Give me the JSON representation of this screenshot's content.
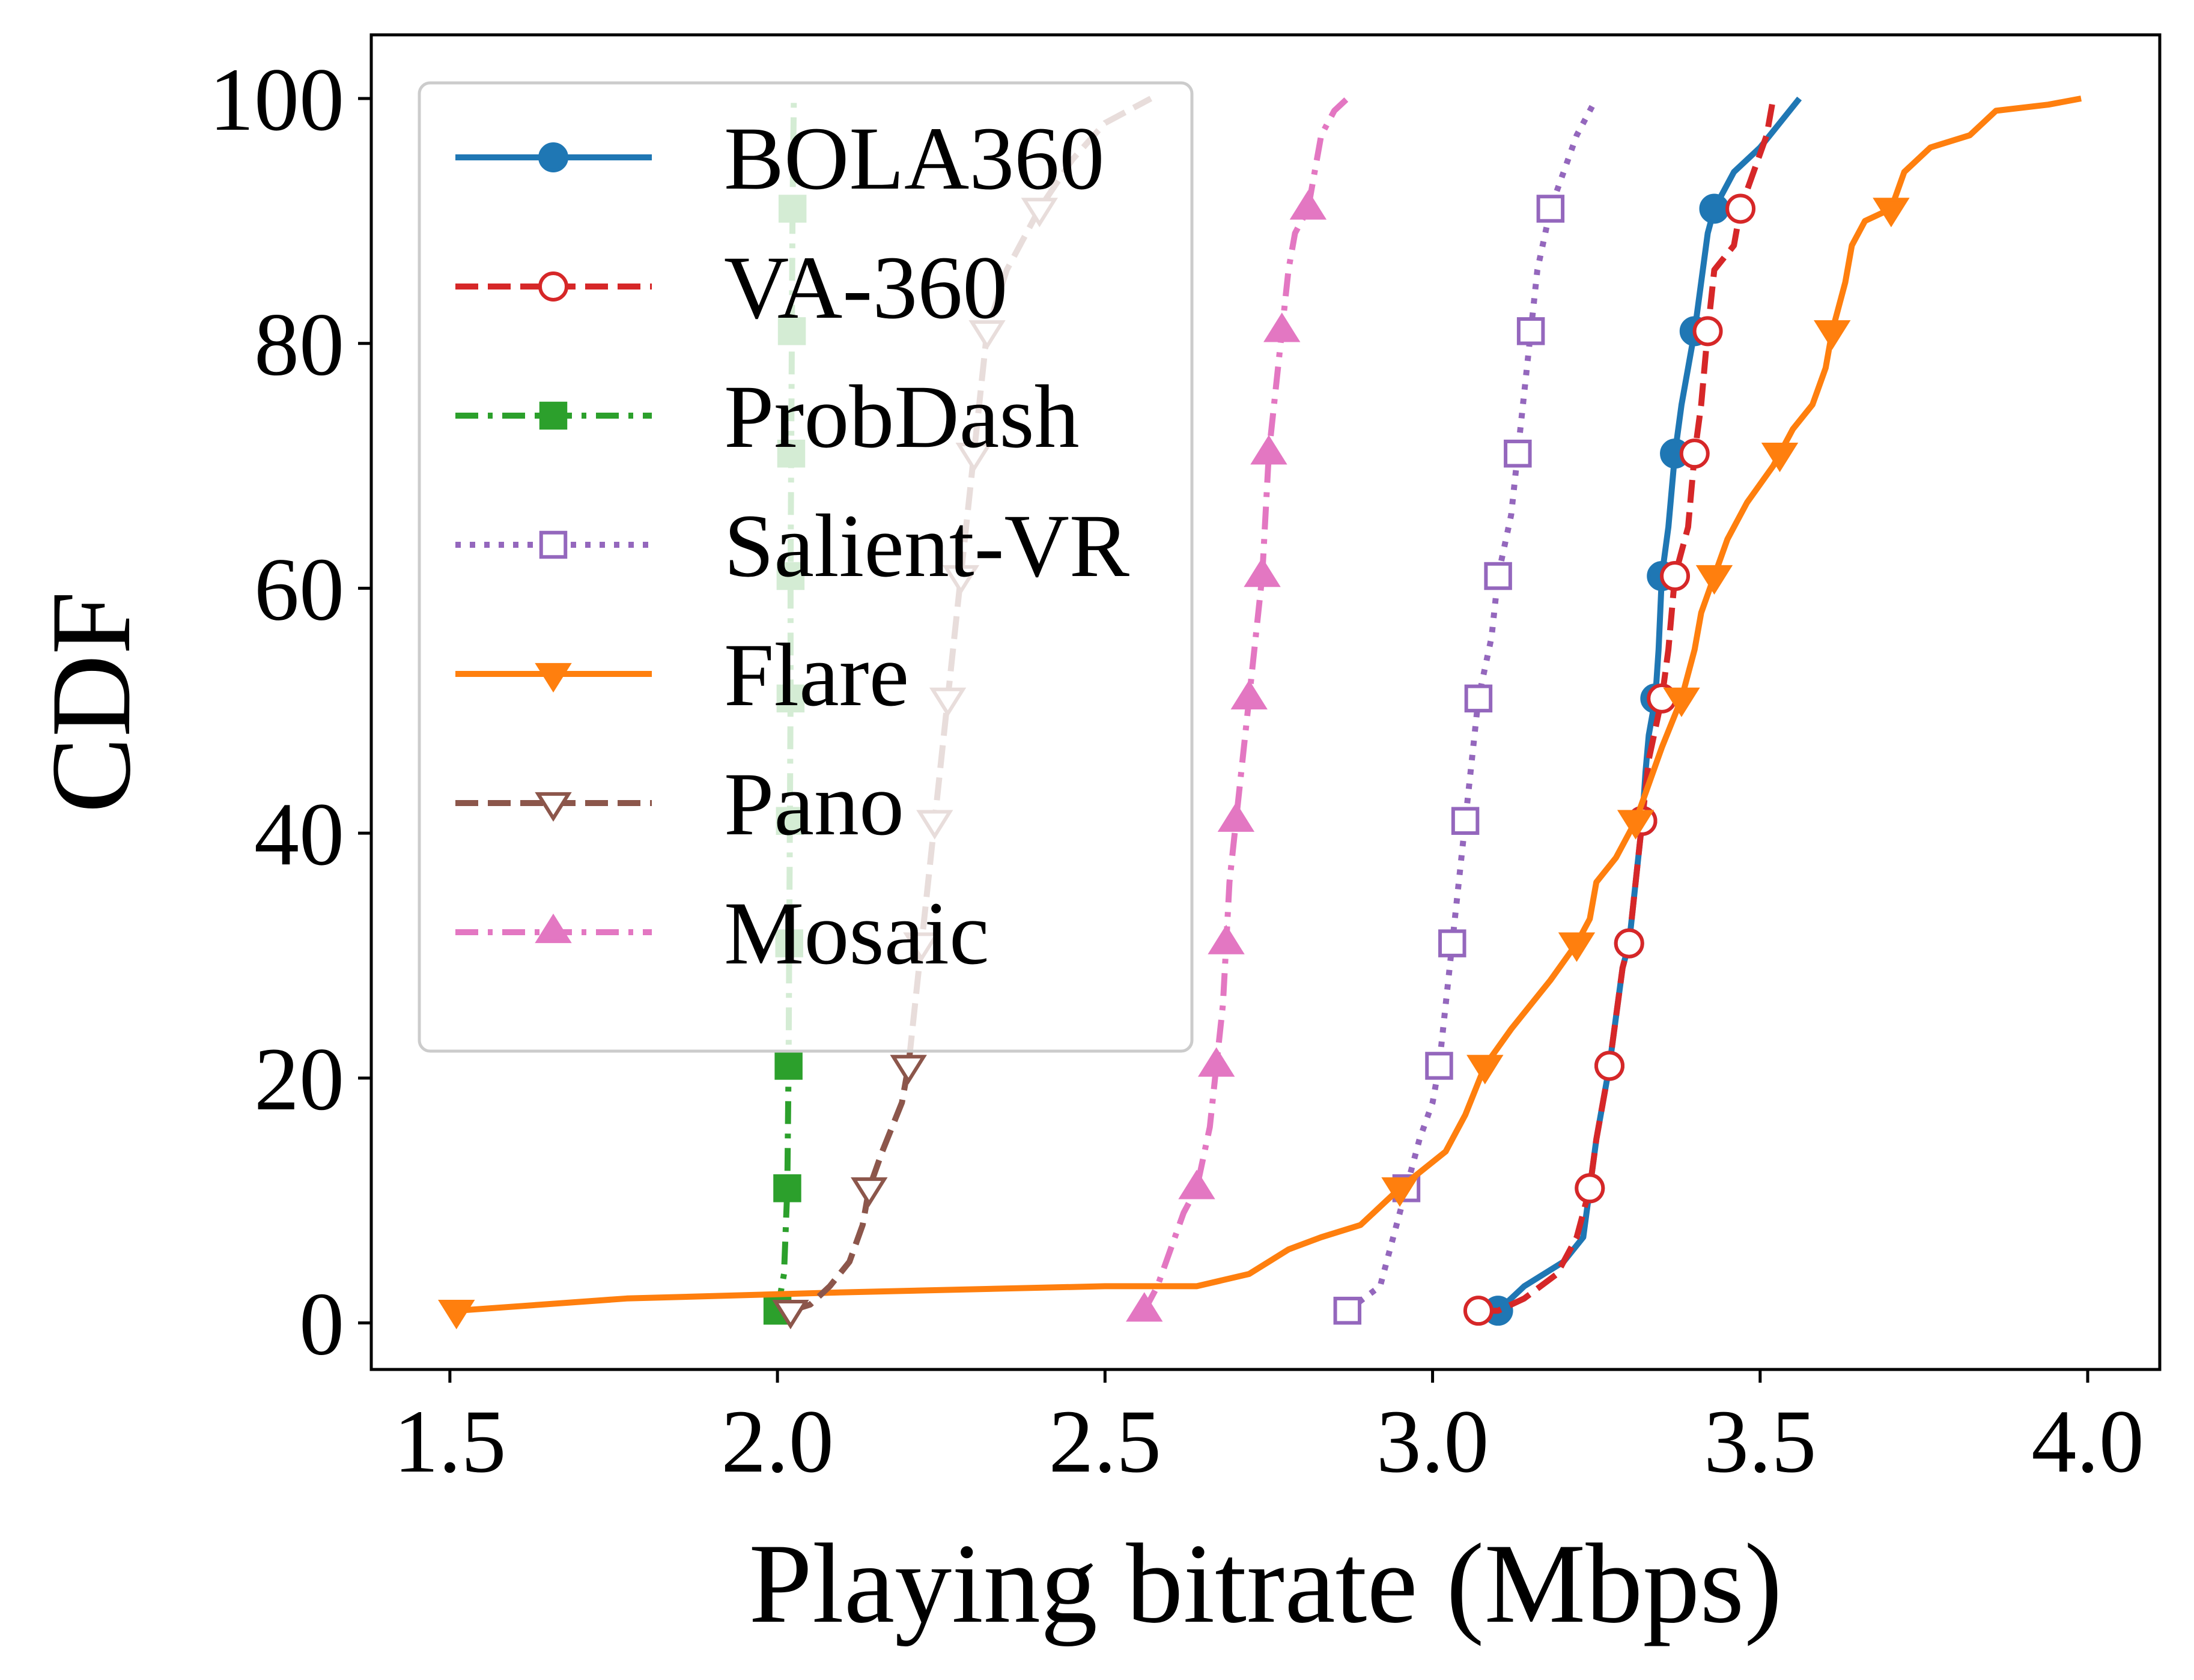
{
  "chart_data": {
    "type": "line",
    "title": "",
    "xlabel": "Playing bitrate (Mbps)",
    "ylabel": "CDF",
    "xlim": [
      1.38,
      4.11
    ],
    "ylim": [
      -3.8,
      105.2
    ],
    "xticks": [
      1.5,
      2.0,
      2.5,
      3.0,
      3.5,
      4.0
    ],
    "xtick_labels": [
      "1.5",
      "2.0",
      "2.5",
      "3.0",
      "3.5",
      "4.0"
    ],
    "yticks": [
      0,
      20,
      40,
      60,
      80,
      100
    ],
    "ytick_labels": [
      "0",
      "20",
      "40",
      "60",
      "80",
      "100"
    ],
    "grid": false,
    "legend_position": "upper-left",
    "series": [
      {
        "name": "BOLA360",
        "color": "#1f77b4",
        "dash": "solid",
        "marker": "circle-filled",
        "points": [
          [
            3.1,
            1
          ],
          [
            3.14,
            3
          ],
          [
            3.2,
            5
          ],
          [
            3.23,
            7
          ],
          [
            3.24,
            11
          ],
          [
            3.25,
            15
          ],
          [
            3.26,
            18
          ],
          [
            3.27,
            21
          ],
          [
            3.28,
            25
          ],
          [
            3.29,
            29
          ],
          [
            3.3,
            31
          ],
          [
            3.31,
            36
          ],
          [
            3.32,
            41
          ],
          [
            3.325,
            45
          ],
          [
            3.33,
            48
          ],
          [
            3.34,
            51
          ],
          [
            3.345,
            55
          ],
          [
            3.35,
            61
          ],
          [
            3.36,
            65
          ],
          [
            3.37,
            71
          ],
          [
            3.38,
            75
          ],
          [
            3.39,
            78
          ],
          [
            3.4,
            81
          ],
          [
            3.41,
            85
          ],
          [
            3.42,
            89
          ],
          [
            3.43,
            91
          ],
          [
            3.46,
            94
          ],
          [
            3.5,
            96
          ],
          [
            3.53,
            98
          ],
          [
            3.56,
            100
          ]
        ],
        "marker_points": [
          [
            3.1,
            1
          ],
          [
            3.24,
            11
          ],
          [
            3.27,
            21
          ],
          [
            3.3,
            31
          ],
          [
            3.32,
            41
          ],
          [
            3.34,
            51
          ],
          [
            3.35,
            61
          ],
          [
            3.37,
            71
          ],
          [
            3.4,
            81
          ],
          [
            3.43,
            91
          ]
        ]
      },
      {
        "name": "VA-360",
        "color": "#d62728",
        "dash": "dashed",
        "marker": "circle-open",
        "points": [
          [
            3.07,
            1
          ],
          [
            3.1,
            1
          ],
          [
            3.14,
            2
          ],
          [
            3.19,
            4
          ],
          [
            3.22,
            7
          ],
          [
            3.24,
            11
          ],
          [
            3.25,
            15
          ],
          [
            3.26,
            18
          ],
          [
            3.27,
            21
          ],
          [
            3.28,
            25
          ],
          [
            3.29,
            29
          ],
          [
            3.3,
            31
          ],
          [
            3.31,
            36
          ],
          [
            3.32,
            41
          ],
          [
            3.33,
            46
          ],
          [
            3.35,
            51
          ],
          [
            3.36,
            55
          ],
          [
            3.37,
            61
          ],
          [
            3.39,
            65
          ],
          [
            3.4,
            71
          ],
          [
            3.41,
            75
          ],
          [
            3.42,
            81
          ],
          [
            3.43,
            86
          ],
          [
            3.46,
            88
          ],
          [
            3.47,
            91
          ],
          [
            3.49,
            94
          ],
          [
            3.51,
            97
          ],
          [
            3.52,
            100
          ]
        ],
        "marker_points": [
          [
            3.07,
            1
          ],
          [
            3.24,
            11
          ],
          [
            3.27,
            21
          ],
          [
            3.3,
            31
          ],
          [
            3.32,
            41
          ],
          [
            3.35,
            51
          ],
          [
            3.37,
            61
          ],
          [
            3.4,
            71
          ],
          [
            3.42,
            81
          ],
          [
            3.47,
            91
          ]
        ]
      },
      {
        "name": "ProbDash",
        "color": "#2ca02c",
        "dash": "dashdot",
        "marker": "square-filled",
        "points": [
          [
            2.0,
            1
          ],
          [
            2.01,
            4
          ],
          [
            2.015,
            11
          ],
          [
            2.017,
            21
          ],
          [
            2.018,
            31
          ],
          [
            2.019,
            41
          ],
          [
            2.02,
            51
          ],
          [
            2.02,
            61
          ],
          [
            2.021,
            71
          ],
          [
            2.022,
            81
          ],
          [
            2.023,
            91
          ],
          [
            2.025,
            100
          ]
        ],
        "marker_points": [
          [
            2.0,
            1
          ],
          [
            2.015,
            11
          ],
          [
            2.017,
            21
          ],
          [
            2.018,
            31
          ],
          [
            2.019,
            41
          ],
          [
            2.02,
            51
          ],
          [
            2.02,
            61
          ],
          [
            2.021,
            71
          ],
          [
            2.022,
            81
          ],
          [
            2.023,
            91
          ]
        ]
      },
      {
        "name": "Salient-VR",
        "color": "#9467bd",
        "dash": "dotted",
        "marker": "square-open",
        "points": [
          [
            2.87,
            1
          ],
          [
            2.92,
            3
          ],
          [
            2.94,
            7
          ],
          [
            2.96,
            11
          ],
          [
            2.98,
            15
          ],
          [
            3.0,
            18
          ],
          [
            3.01,
            21
          ],
          [
            3.02,
            26
          ],
          [
            3.03,
            31
          ],
          [
            3.04,
            36
          ],
          [
            3.05,
            41
          ],
          [
            3.06,
            46
          ],
          [
            3.07,
            51
          ],
          [
            3.09,
            56
          ],
          [
            3.1,
            61
          ],
          [
            3.12,
            66
          ],
          [
            3.13,
            71
          ],
          [
            3.14,
            76
          ],
          [
            3.15,
            81
          ],
          [
            3.16,
            86
          ],
          [
            3.18,
            91
          ],
          [
            3.2,
            94
          ],
          [
            3.22,
            97
          ],
          [
            3.25,
            100
          ]
        ],
        "marker_points": [
          [
            2.87,
            1
          ],
          [
            2.96,
            11
          ],
          [
            3.01,
            21
          ],
          [
            3.03,
            31
          ],
          [
            3.05,
            41
          ],
          [
            3.07,
            51
          ],
          [
            3.1,
            61
          ],
          [
            3.13,
            71
          ],
          [
            3.15,
            81
          ],
          [
            3.18,
            91
          ]
        ]
      },
      {
        "name": "Flare",
        "color": "#ff7f0e",
        "dash": "solid",
        "marker": "triangle-down-filled",
        "points": [
          [
            1.51,
            1
          ],
          [
            1.77,
            2
          ],
          [
            2.1,
            2.5
          ],
          [
            2.5,
            3
          ],
          [
            2.64,
            3
          ],
          [
            2.72,
            4
          ],
          [
            2.75,
            5
          ],
          [
            2.78,
            6
          ],
          [
            2.83,
            7
          ],
          [
            2.89,
            8
          ],
          [
            2.95,
            11
          ],
          [
            3.02,
            14
          ],
          [
            3.05,
            17
          ],
          [
            3.08,
            21
          ],
          [
            3.12,
            24
          ],
          [
            3.15,
            26
          ],
          [
            3.18,
            28
          ],
          [
            3.22,
            31
          ],
          [
            3.24,
            33
          ],
          [
            3.25,
            36
          ],
          [
            3.28,
            38
          ],
          [
            3.31,
            41
          ],
          [
            3.33,
            44
          ],
          [
            3.35,
            47
          ],
          [
            3.38,
            51
          ],
          [
            3.4,
            55
          ],
          [
            3.41,
            58
          ],
          [
            3.43,
            61
          ],
          [
            3.45,
            64
          ],
          [
            3.48,
            67
          ],
          [
            3.52,
            70
          ],
          [
            3.53,
            71
          ],
          [
            3.55,
            73
          ],
          [
            3.58,
            75
          ],
          [
            3.6,
            78
          ],
          [
            3.61,
            81
          ],
          [
            3.63,
            85
          ],
          [
            3.64,
            88
          ],
          [
            3.66,
            90
          ],
          [
            3.7,
            91
          ],
          [
            3.72,
            94
          ],
          [
            3.76,
            96
          ],
          [
            3.82,
            97
          ],
          [
            3.86,
            99
          ],
          [
            3.94,
            99.5
          ],
          [
            3.99,
            100
          ]
        ],
        "marker_points": [
          [
            1.51,
            1
          ],
          [
            2.95,
            11
          ],
          [
            3.08,
            21
          ],
          [
            3.22,
            31
          ],
          [
            3.31,
            41
          ],
          [
            3.38,
            51
          ],
          [
            3.43,
            61
          ],
          [
            3.53,
            71
          ],
          [
            3.61,
            81
          ],
          [
            3.7,
            91
          ]
        ]
      },
      {
        "name": "Pano",
        "color": "#8c564b",
        "dash": "dashed",
        "marker": "triangle-down-open",
        "points": [
          [
            2.02,
            1
          ],
          [
            2.05,
            1.5
          ],
          [
            2.08,
            3
          ],
          [
            2.11,
            5
          ],
          [
            2.13,
            8
          ],
          [
            2.14,
            11
          ],
          [
            2.16,
            14
          ],
          [
            2.19,
            18
          ],
          [
            2.2,
            21
          ],
          [
            2.21,
            26
          ],
          [
            2.22,
            31
          ],
          [
            2.23,
            36
          ],
          [
            2.24,
            41
          ],
          [
            2.25,
            46
          ],
          [
            2.26,
            51
          ],
          [
            2.27,
            56
          ],
          [
            2.28,
            61
          ],
          [
            2.29,
            66
          ],
          [
            2.3,
            71
          ],
          [
            2.31,
            76
          ],
          [
            2.32,
            81
          ],
          [
            2.35,
            86
          ],
          [
            2.4,
            91
          ],
          [
            2.45,
            95
          ],
          [
            2.5,
            98
          ],
          [
            2.57,
            100
          ]
        ],
        "marker_points": [
          [
            2.02,
            1
          ],
          [
            2.14,
            11
          ],
          [
            2.2,
            21
          ],
          [
            2.22,
            31
          ],
          [
            2.24,
            41
          ],
          [
            2.26,
            51
          ],
          [
            2.28,
            61
          ],
          [
            2.3,
            71
          ],
          [
            2.32,
            81
          ],
          [
            2.4,
            91
          ]
        ]
      },
      {
        "name": "Mosaic",
        "color": "#e377c2",
        "dash": "dashdot",
        "marker": "triangle-up-filled",
        "points": [
          [
            2.56,
            1
          ],
          [
            2.58,
            3
          ],
          [
            2.6,
            6
          ],
          [
            2.62,
            9
          ],
          [
            2.64,
            11
          ],
          [
            2.66,
            16
          ],
          [
            2.67,
            21
          ],
          [
            2.68,
            26
          ],
          [
            2.685,
            31
          ],
          [
            2.69,
            36
          ],
          [
            2.7,
            41
          ],
          [
            2.71,
            46
          ],
          [
            2.72,
            51
          ],
          [
            2.73,
            56
          ],
          [
            2.74,
            61
          ],
          [
            2.745,
            66
          ],
          [
            2.75,
            71
          ],
          [
            2.76,
            76
          ],
          [
            2.77,
            81
          ],
          [
            2.78,
            86
          ],
          [
            2.79,
            89
          ],
          [
            2.81,
            91
          ],
          [
            2.82,
            94
          ],
          [
            2.83,
            97
          ],
          [
            2.85,
            99
          ],
          [
            2.87,
            100
          ]
        ],
        "marker_points": [
          [
            2.56,
            1
          ],
          [
            2.64,
            11
          ],
          [
            2.67,
            21
          ],
          [
            2.685,
            31
          ],
          [
            2.7,
            41
          ],
          [
            2.72,
            51
          ],
          [
            2.74,
            61
          ],
          [
            2.75,
            71
          ],
          [
            2.77,
            81
          ],
          [
            2.81,
            91
          ]
        ]
      }
    ]
  }
}
